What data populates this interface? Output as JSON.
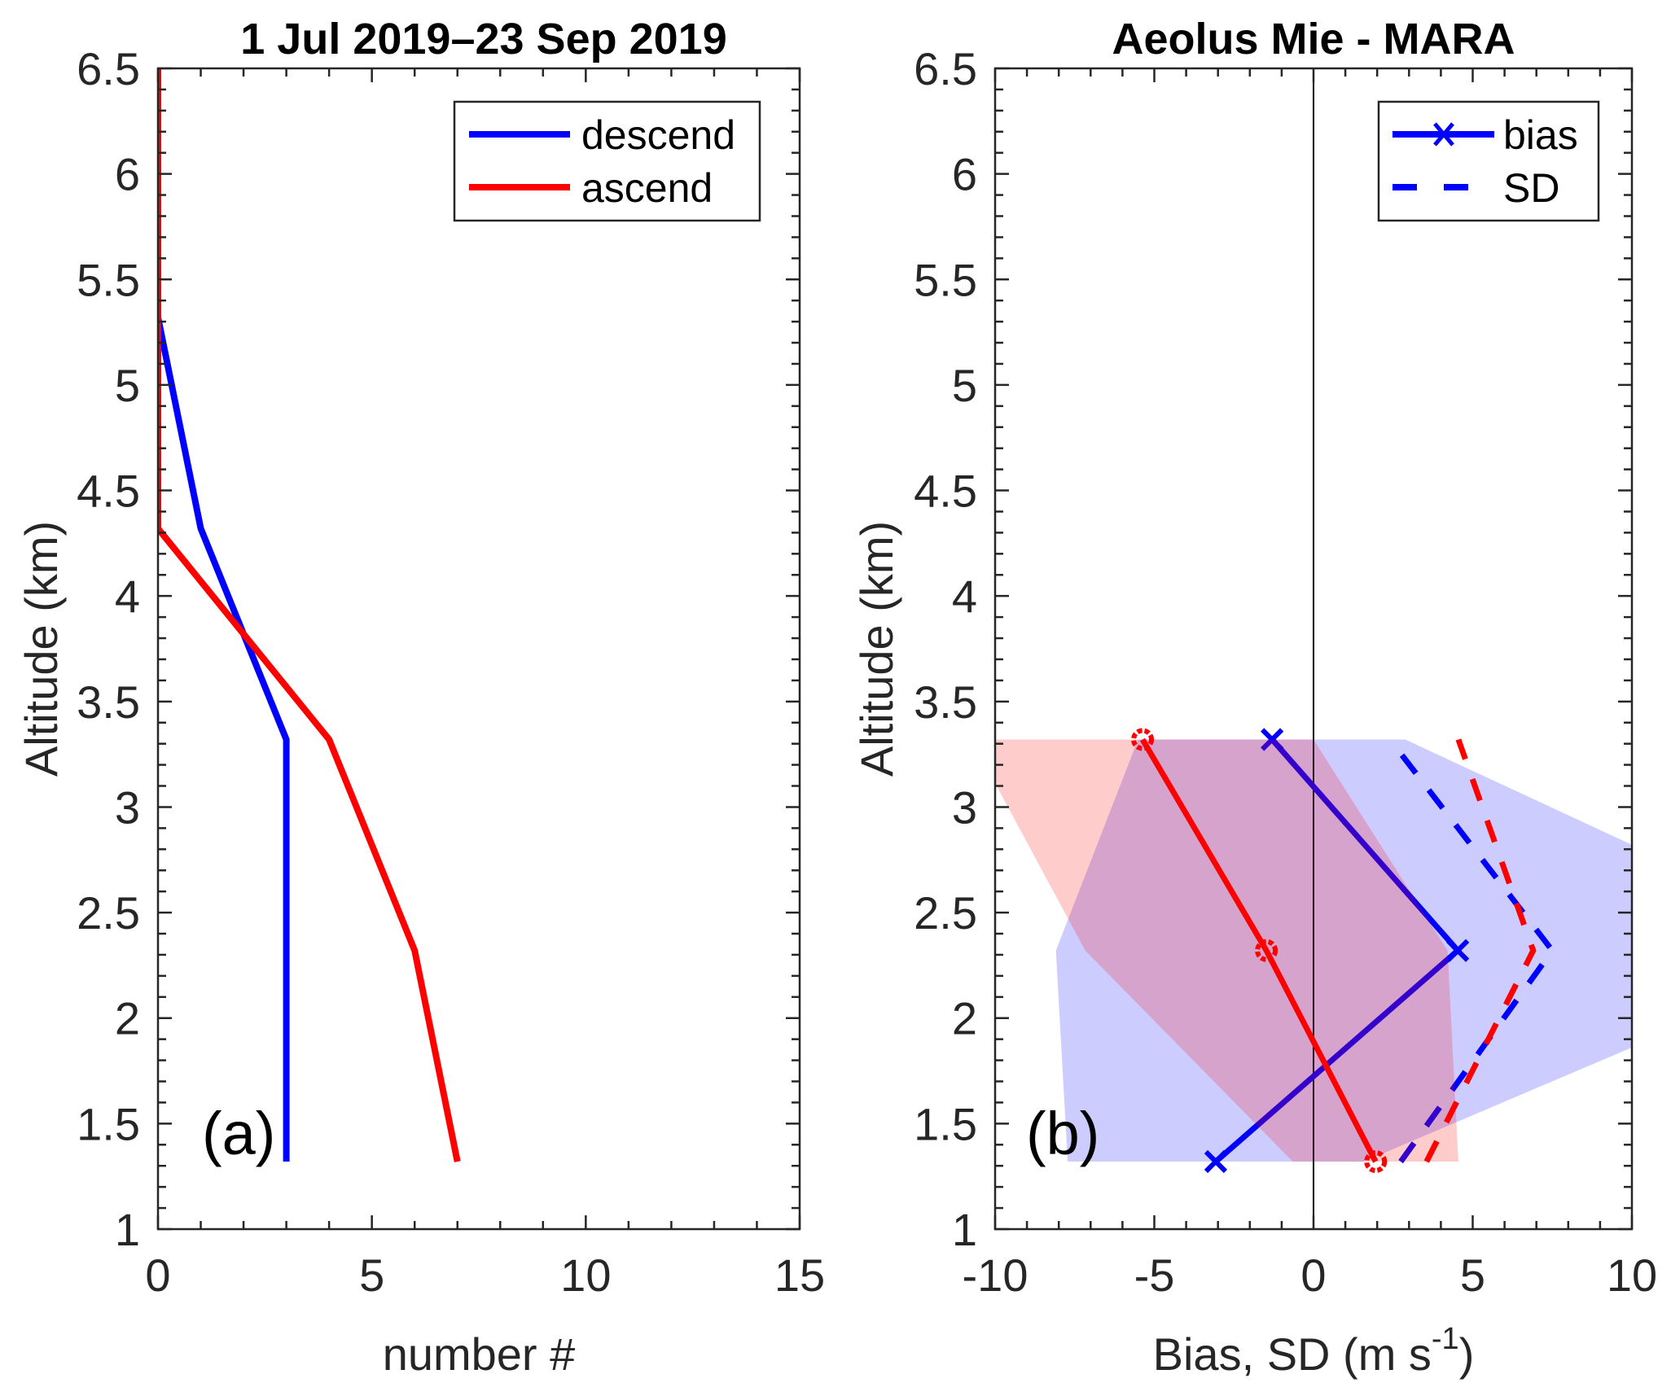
{
  "chart_data": [
    {
      "type": "line",
      "panel_label": "(a)",
      "title": "1 Jul 2019–23 Sep 2019",
      "xlabel": "number #",
      "ylabel": "Altitude (km)",
      "xlim": [
        0,
        15
      ],
      "ylim": [
        1,
        6.5
      ],
      "xticks": [
        0,
        5,
        10,
        15
      ],
      "xtick_labels": [
        "0",
        "5",
        "10",
        "15"
      ],
      "yticks": [
        1,
        1.5,
        2,
        2.5,
        3,
        3.5,
        4,
        4.5,
        5,
        5.5,
        6,
        6.5
      ],
      "ytick_labels": [
        "1",
        "1.5",
        "2",
        "2.5",
        "3",
        "3.5",
        "4",
        "4.5",
        "5",
        "5.5",
        "6",
        "6.5"
      ],
      "grid": false,
      "legend": {
        "placement": "top-right",
        "entries": [
          "descend",
          "ascend"
        ]
      },
      "series": [
        {
          "name": "descend",
          "color": "#0000ff",
          "style": "solid",
          "x": [
            3,
            3,
            3,
            1,
            0,
            0,
            0
          ],
          "y": [
            1.32,
            2.32,
            3.32,
            4.32,
            5.32,
            6.32,
            7.32
          ]
        },
        {
          "name": "ascend",
          "color": "#ff0000",
          "style": "solid",
          "x": [
            7,
            6,
            4,
            0,
            0,
            0,
            0
          ],
          "y": [
            1.32,
            2.32,
            3.32,
            4.32,
            5.32,
            6.32,
            7.32
          ]
        }
      ]
    },
    {
      "type": "line",
      "panel_label": "(b)",
      "title": "Aeolus Mie - MARA",
      "xlabel": "Bias, SD  (m s",
      "xlabel_superscript": "-1",
      "xlabel_suffix": ")",
      "ylabel": "Altitude (km)",
      "xlim": [
        -10,
        10
      ],
      "ylim": [
        1,
        6.5
      ],
      "xticks": [
        -10,
        -5,
        0,
        5,
        10
      ],
      "xtick_labels": [
        "-10",
        "-5",
        "0",
        "5",
        "10"
      ],
      "yticks": [
        1,
        1.5,
        2,
        2.5,
        3,
        3.5,
        4,
        4.5,
        5,
        5.5,
        6,
        6.5
      ],
      "ytick_labels": [
        "1",
        "1.5",
        "2",
        "2.5",
        "3",
        "3.5",
        "4",
        "4.5",
        "5",
        "5.5",
        "6",
        "6.5"
      ],
      "grid": false,
      "zero_line": true,
      "legend": {
        "placement": "top-right",
        "entries": [
          "bias",
          "SD"
        ]
      },
      "altitudes": [
        1.32,
        2.32,
        3.32
      ],
      "series": [
        {
          "name": "bias (descend)",
          "color": "#0000ff",
          "style": "solid",
          "marker": "x",
          "x": [
            -3.07,
            4.53,
            -1.3
          ]
        },
        {
          "name": "SD (descend)",
          "color": "#0000ff",
          "style": "dashed",
          "x": [
            2.74,
            7.5,
            2.4
          ]
        },
        {
          "name": "bias (ascend)",
          "color": "#ff0000",
          "style": "solid",
          "marker": "o",
          "x": [
            1.95,
            -1.48,
            -5.37
          ]
        },
        {
          "name": "SD (ascend)",
          "color": "#ff0000",
          "style": "dashed",
          "x": [
            3.55,
            6.9,
            4.55
          ]
        }
      ],
      "bands": [
        {
          "name": "descend spread",
          "color": "#0000ff",
          "opacity": 0.2,
          "lower": [
            -7.72,
            -8.09,
            -5.51
          ],
          "upper": [
            1.58,
            17.15,
            2.88
          ]
        },
        {
          "name": "ascend spread",
          "color": "#ff0000",
          "opacity": 0.2,
          "lower": [
            -0.65,
            -7.17,
            -10.74
          ],
          "upper": [
            4.55,
            4.21,
            0.0
          ]
        }
      ]
    }
  ]
}
